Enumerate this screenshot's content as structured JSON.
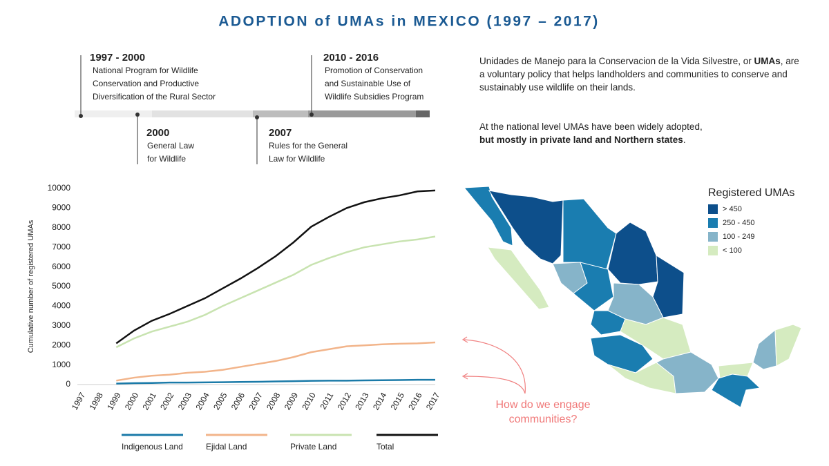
{
  "title": "ADOPTION of UMAs in MEXICO (1997 – 2017)",
  "timeline": [
    {
      "period": "1997 - 2000",
      "lines": [
        "National Program for Wildlife",
        "Conservation and Productive",
        "Diversification of the Rural Sector"
      ]
    },
    {
      "period": "2000",
      "lines": [
        "General Law",
        "for Wildlife"
      ]
    },
    {
      "period": "2007",
      "lines": [
        "Rules for the General",
        "Law for Wildlife"
      ]
    },
    {
      "period": "2010 - 2016",
      "lines": [
        "Promotion of Conservation",
        "and Sustainable Use of",
        "Wildlife Subsidies Program"
      ]
    }
  ],
  "description": [
    [
      "Unidades de Manejo para la Conservacion de la Vida Silvestre, or ",
      "UMAs",
      ", are a voluntary policy that helps landholders and communities to conserve and sustainably use wildlife on their lands."
    ],
    [
      "At the national level UMAs have been widely adopted, ",
      "but mostly in private land and Northern states",
      "."
    ]
  ],
  "map": {
    "title": "Registered UMAs",
    "legend": [
      {
        "label": "> 450",
        "color": "#0d4f8b"
      },
      {
        "label": "250 - 450",
        "color": "#1a7db0"
      },
      {
        "label": "100 - 249",
        "color": "#86b4c9"
      },
      {
        "label": "< 100",
        "color": "#d5ebc0"
      }
    ]
  },
  "chart_data": {
    "type": "line",
    "y_label": "Cumulative number of registered UMAs",
    "annotation": [
      "How do we engage",
      "communities?"
    ],
    "categories": [
      "1997",
      "1998",
      "1999",
      "2000",
      "2001",
      "2002",
      "2003",
      "2004",
      "2005",
      "2006",
      "2007",
      "2008",
      "2009",
      "2010",
      "2011",
      "2012",
      "2013",
      "2014",
      "2015",
      "2016",
      "2017"
    ],
    "ylim": [
      0,
      10000
    ],
    "yticks": [
      0,
      1000,
      2000,
      3000,
      4000,
      5000,
      6000,
      7000,
      8000,
      9000,
      10000
    ],
    "series": [
      {
        "name": "Indigenous Land",
        "color": "#1a7aa8",
        "values": [
          null,
          null,
          50,
          70,
          80,
          100,
          100,
          110,
          120,
          130,
          140,
          160,
          170,
          190,
          200,
          200,
          210,
          220,
          230,
          240,
          240
        ]
      },
      {
        "name": "Ejidal Land",
        "color": "#f2b48a",
        "values": [
          null,
          null,
          200,
          350,
          450,
          500,
          600,
          650,
          750,
          900,
          1050,
          1200,
          1400,
          1650,
          1800,
          1950,
          2000,
          2050,
          2080,
          2100,
          2150
        ]
      },
      {
        "name": "Private Land",
        "color": "#c8e3b0",
        "values": [
          null,
          null,
          1900,
          2350,
          2700,
          2950,
          3200,
          3550,
          4000,
          4400,
          4800,
          5200,
          5600,
          6100,
          6450,
          6750,
          7000,
          7150,
          7300,
          7400,
          7550
        ]
      },
      {
        "name": "Total",
        "color": "#111111",
        "values": [
          null,
          null,
          2100,
          2750,
          3250,
          3600,
          4000,
          4400,
          4900,
          5400,
          5950,
          6550,
          7250,
          8050,
          8550,
          9000,
          9300,
          9500,
          9650,
          9850,
          9900
        ]
      }
    ]
  }
}
